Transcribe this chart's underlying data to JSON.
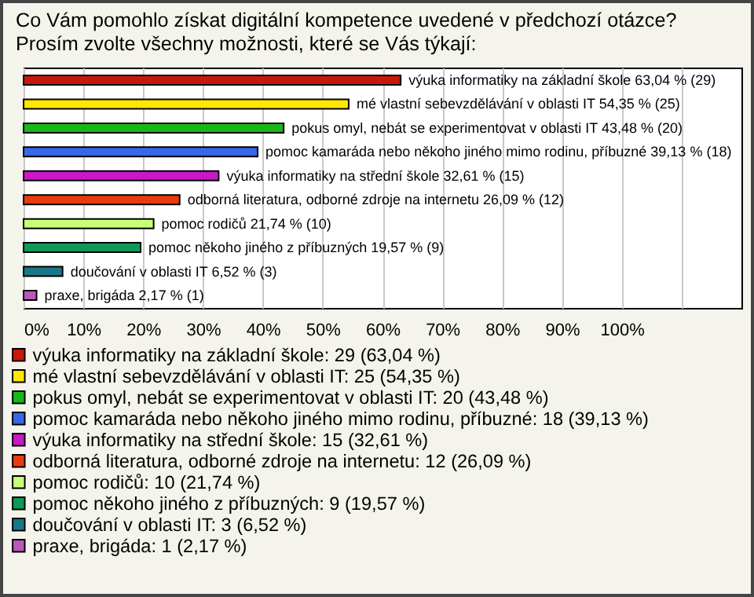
{
  "chart_data": {
    "type": "bar",
    "orientation": "horizontal",
    "title": "Co Vám pomohlo získat digitální kompetence uvedené v předchozí otázce? Prosím zvolte všechny možnosti, které se Vás týkají:",
    "categories": [
      null,
      null,
      null,
      null,
      null,
      null,
      null,
      null,
      null,
      null
    ],
    "series": [
      {
        "name": "výuka informatiky na základní škole: 29 (63,04 %)",
        "color": "#c81808",
        "values": [
          63.04,
          null,
          null,
          null,
          null,
          null,
          null,
          null,
          null,
          null
        ],
        "value_labels": [
          "výuka informatiky na základní škole 63,04 % (29)",
          null,
          null,
          null,
          null,
          null,
          null,
          null,
          null,
          null
        ]
      },
      {
        "name": "mé vlastní sebevzdělávání v oblasti IT: 25 (54,35 %)",
        "color": "#ffe800",
        "values": [
          null,
          54.35,
          null,
          null,
          null,
          null,
          null,
          null,
          null,
          null
        ],
        "value_labels": [
          null,
          "mé vlastní sebevzdělávání v oblasti IT 54,35 % (25)",
          null,
          null,
          null,
          null,
          null,
          null,
          null,
          null
        ]
      },
      {
        "name": "pokus omyl, nebát se experimentovat v oblasti IT: 20 (43,48 %)",
        "color": "#18b818",
        "values": [
          null,
          null,
          43.48,
          null,
          null,
          null,
          null,
          null,
          null,
          null
        ],
        "value_labels": [
          null,
          null,
          "pokus omyl, nebát se experimentovat v oblasti IT 43,48 % (20)",
          null,
          null,
          null,
          null,
          null,
          null,
          null
        ]
      },
      {
        "name": "pomoc kamaráda nebo někoho jiného mimo rodinu, příbuzné: 18 (39,13 %)",
        "color": "#3868e8",
        "values": [
          null,
          null,
          null,
          39.13,
          null,
          null,
          null,
          null,
          null,
          null
        ],
        "value_labels": [
          null,
          null,
          null,
          "pomoc kamaráda nebo někoho jiného mimo rodinu, příbuzné 39,13 % (18)",
          null,
          null,
          null,
          null,
          null,
          null
        ]
      },
      {
        "name": "výuka informatiky na střední škole: 15 (32,61 %)",
        "color": "#c818c8",
        "values": [
          null,
          null,
          null,
          null,
          32.61,
          null,
          null,
          null,
          null,
          null
        ],
        "value_labels": [
          null,
          null,
          null,
          null,
          "výuka informatiky na střední škole 32,61 % (15)",
          null,
          null,
          null,
          null,
          null
        ]
      },
      {
        "name": "odborná literatura, odborné zdroje na internetu: 12 (26,09 %)",
        "color": "#e83c10",
        "values": [
          null,
          null,
          null,
          null,
          null,
          26.09,
          null,
          null,
          null,
          null
        ],
        "value_labels": [
          null,
          null,
          null,
          null,
          null,
          "odborná literatura, odborné zdroje na internetu 26,09 % (12)",
          null,
          null,
          null,
          null
        ]
      },
      {
        "name": "pomoc rodičů: 10 (21,74 %)",
        "color": "#c8ff78",
        "values": [
          null,
          null,
          null,
          null,
          null,
          null,
          21.74,
          null,
          null,
          null
        ],
        "value_labels": [
          null,
          null,
          null,
          null,
          null,
          null,
          "pomoc rodičů 21,74 % (10)",
          null,
          null,
          null
        ]
      },
      {
        "name": "pomoc někoho jiného z příbuzných: 9 (19,57 %)",
        "color": "#109858",
        "values": [
          null,
          null,
          null,
          null,
          null,
          null,
          null,
          19.57,
          null,
          null
        ],
        "value_labels": [
          null,
          null,
          null,
          null,
          null,
          null,
          null,
          "pomoc někoho jiného z příbuzných 19,57 % (9)",
          null,
          null
        ]
      },
      {
        "name": "doučování v oblasti IT: 3 (6,52 %)",
        "color": "#187888",
        "values": [
          null,
          null,
          null,
          null,
          null,
          null,
          null,
          null,
          6.52,
          null
        ],
        "value_labels": [
          null,
          null,
          null,
          null,
          null,
          null,
          null,
          null,
          "doučování v oblasti IT 6,52 % (3)",
          null
        ]
      },
      {
        "name": "praxe, brigáda: 1 (2,17 %)",
        "color": "#b858b8",
        "values": [
          null,
          null,
          null,
          null,
          null,
          null,
          null,
          null,
          null,
          2.17
        ],
        "value_labels": [
          null,
          null,
          null,
          null,
          null,
          null,
          null,
          null,
          null,
          "praxe, brigáda 2,17 % (1)"
        ]
      }
    ],
    "xlim": [
      0,
      120
    ],
    "xticks": [
      {
        "value": 0,
        "label": "0%"
      },
      {
        "value": 10,
        "label": "10%"
      },
      {
        "value": 20,
        "label": "20%"
      },
      {
        "value": 30,
        "label": "30%"
      },
      {
        "value": 40,
        "label": "40%"
      },
      {
        "value": 50,
        "label": "50%"
      },
      {
        "value": 60,
        "label": "60%"
      },
      {
        "value": 70,
        "label": "70%"
      },
      {
        "value": 80,
        "label": "80%"
      },
      {
        "value": 90,
        "label": "90%"
      },
      {
        "value": 100,
        "label": "100%"
      },
      {
        "value": 110,
        "label": null
      }
    ],
    "grid": "x",
    "legend": "bottom"
  }
}
